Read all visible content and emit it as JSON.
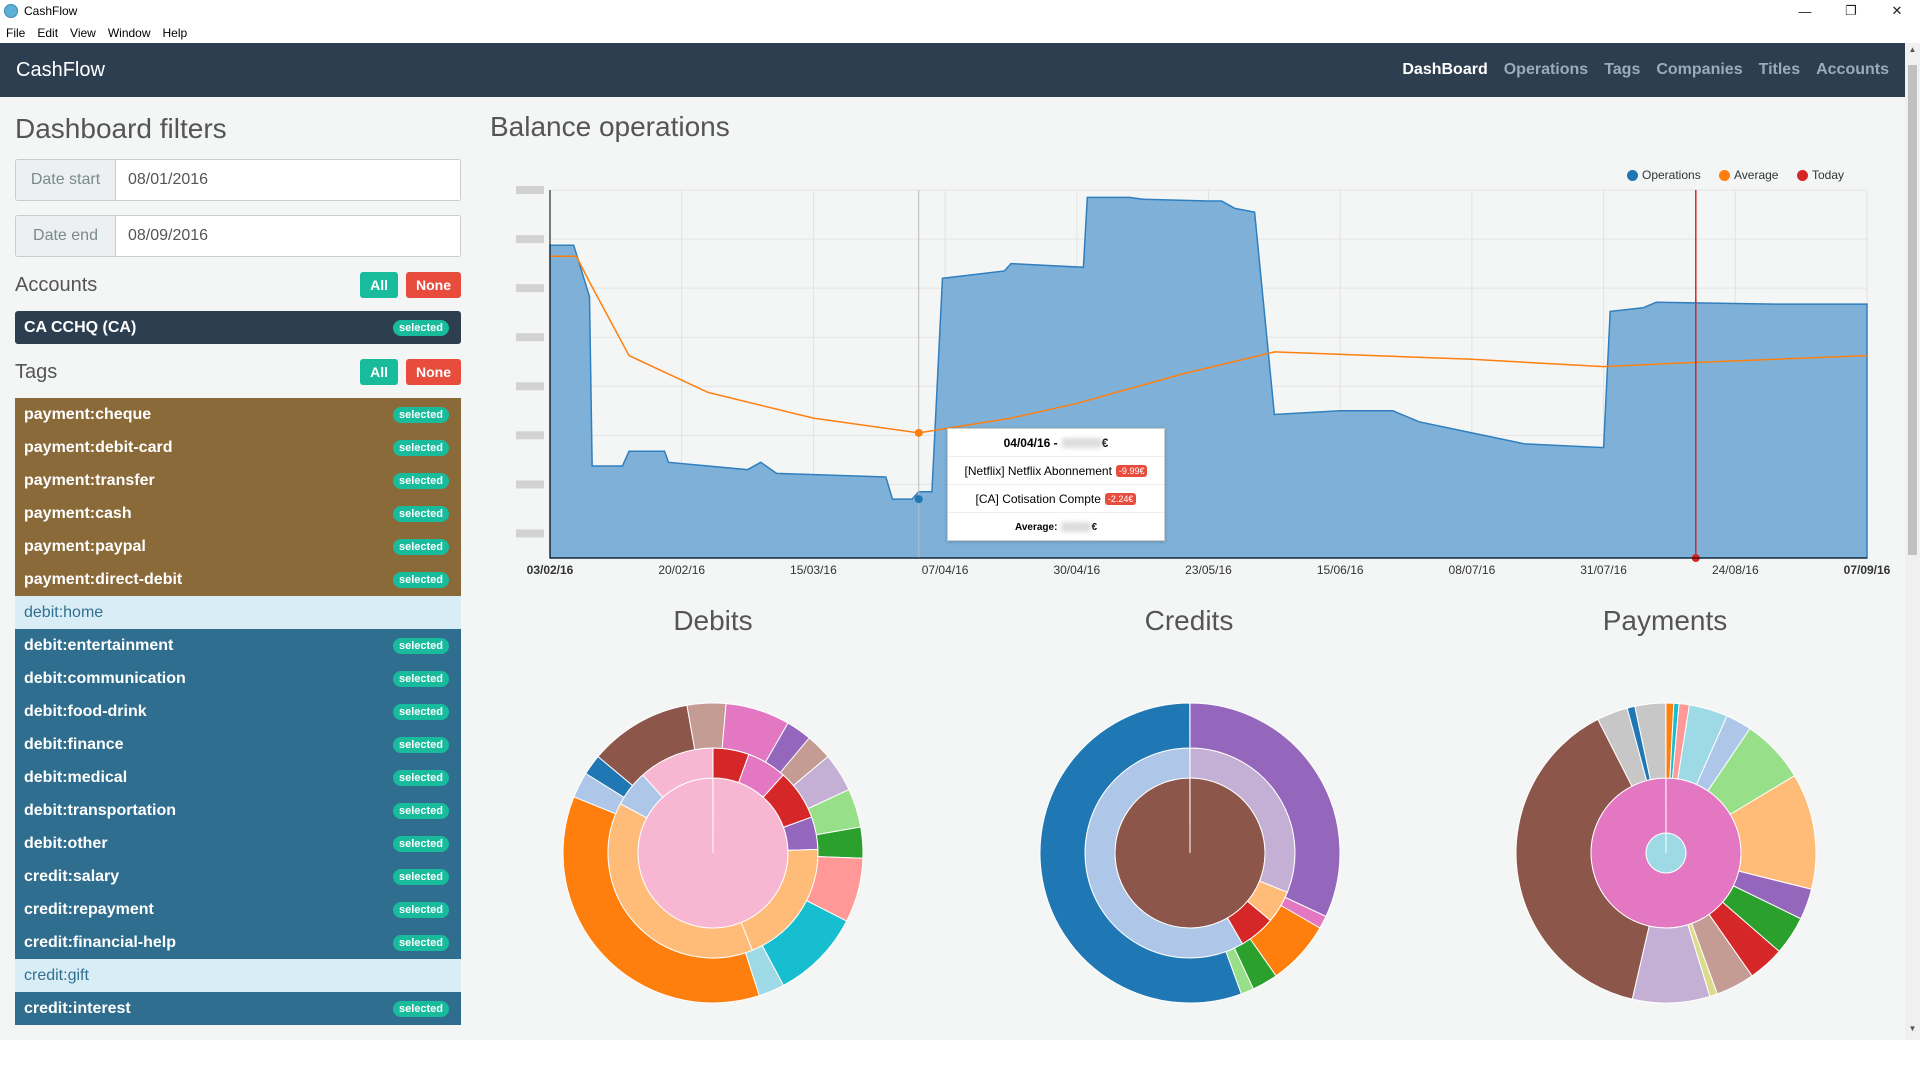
{
  "window": {
    "title": "CashFlow",
    "minimize": "—",
    "maximize": "❐",
    "close": "✕"
  },
  "menu": [
    "File",
    "Edit",
    "View",
    "Window",
    "Help"
  ],
  "nav": {
    "brand": "CashFlow",
    "links": [
      "DashBoard",
      "Operations",
      "Tags",
      "Companies",
      "Titles",
      "Accounts"
    ],
    "active": "DashBoard"
  },
  "filters": {
    "title": "Dashboard filters",
    "date_start_label": "Date start",
    "date_start_value": "08/01/2016",
    "date_end_label": "Date end",
    "date_end_value": "08/09/2016",
    "accounts_title": "Accounts",
    "tags_title": "Tags",
    "all_label": "All",
    "none_label": "None",
    "selected_label": "selected",
    "accounts": [
      {
        "name": "CA CCHQ (CA)",
        "selected": true
      }
    ],
    "tags": [
      {
        "name": "payment:cheque",
        "group": "pay",
        "selected": true
      },
      {
        "name": "payment:debit-card",
        "group": "pay",
        "selected": true
      },
      {
        "name": "payment:transfer",
        "group": "pay",
        "selected": true
      },
      {
        "name": "payment:cash",
        "group": "pay",
        "selected": true
      },
      {
        "name": "payment:paypal",
        "group": "pay",
        "selected": true
      },
      {
        "name": "payment:direct-debit",
        "group": "pay",
        "selected": true
      },
      {
        "name": "debit:home",
        "group": "deb",
        "selected": false
      },
      {
        "name": "debit:entertainment",
        "group": "deb",
        "selected": true
      },
      {
        "name": "debit:communication",
        "group": "deb",
        "selected": true
      },
      {
        "name": "debit:food-drink",
        "group": "deb",
        "selected": true
      },
      {
        "name": "debit:finance",
        "group": "deb",
        "selected": true
      },
      {
        "name": "debit:medical",
        "group": "deb",
        "selected": true
      },
      {
        "name": "debit:transportation",
        "group": "deb",
        "selected": true
      },
      {
        "name": "debit:other",
        "group": "deb",
        "selected": true
      },
      {
        "name": "credit:salary",
        "group": "deb",
        "selected": true
      },
      {
        "name": "credit:repayment",
        "group": "deb",
        "selected": true
      },
      {
        "name": "credit:financial-help",
        "group": "deb",
        "selected": true
      },
      {
        "name": "credit:gift",
        "group": "deb",
        "selected": false
      },
      {
        "name": "credit:interest",
        "group": "deb",
        "selected": true
      }
    ]
  },
  "balance": {
    "title": "Balance operations",
    "legend": [
      {
        "name": "Operations",
        "color": "#1f77b4"
      },
      {
        "name": "Average",
        "color": "#ff7f0e"
      },
      {
        "name": "Today",
        "color": "#d62728"
      }
    ],
    "x_ticks": [
      "03/02/16",
      "20/02/16",
      "15/03/16",
      "07/04/16",
      "30/04/16",
      "23/05/16",
      "15/06/16",
      "08/07/16",
      "31/07/16",
      "24/08/16",
      "07/09/16"
    ],
    "tooltip": {
      "date": "04/04/16 -",
      "currency": "€",
      "line1": "[Netflix] Netflix Abonnement",
      "amount1": "-9.99€",
      "line2": "[CA] Cotisation Compte",
      "amount2": "-2.24€",
      "average_label": "Average:"
    }
  },
  "chart_data": {
    "type": "area",
    "title": "Balance operations",
    "x_range": [
      "03/02/16",
      "07/09/16"
    ],
    "series": [
      {
        "name": "Operations",
        "shape": "area"
      },
      {
        "name": "Average",
        "shape": "line"
      }
    ],
    "today_marker": "between 31/07/16 and 24/08/16"
  },
  "pies": {
    "debits": "Debits",
    "credits": "Credits",
    "payments": "Payments"
  }
}
